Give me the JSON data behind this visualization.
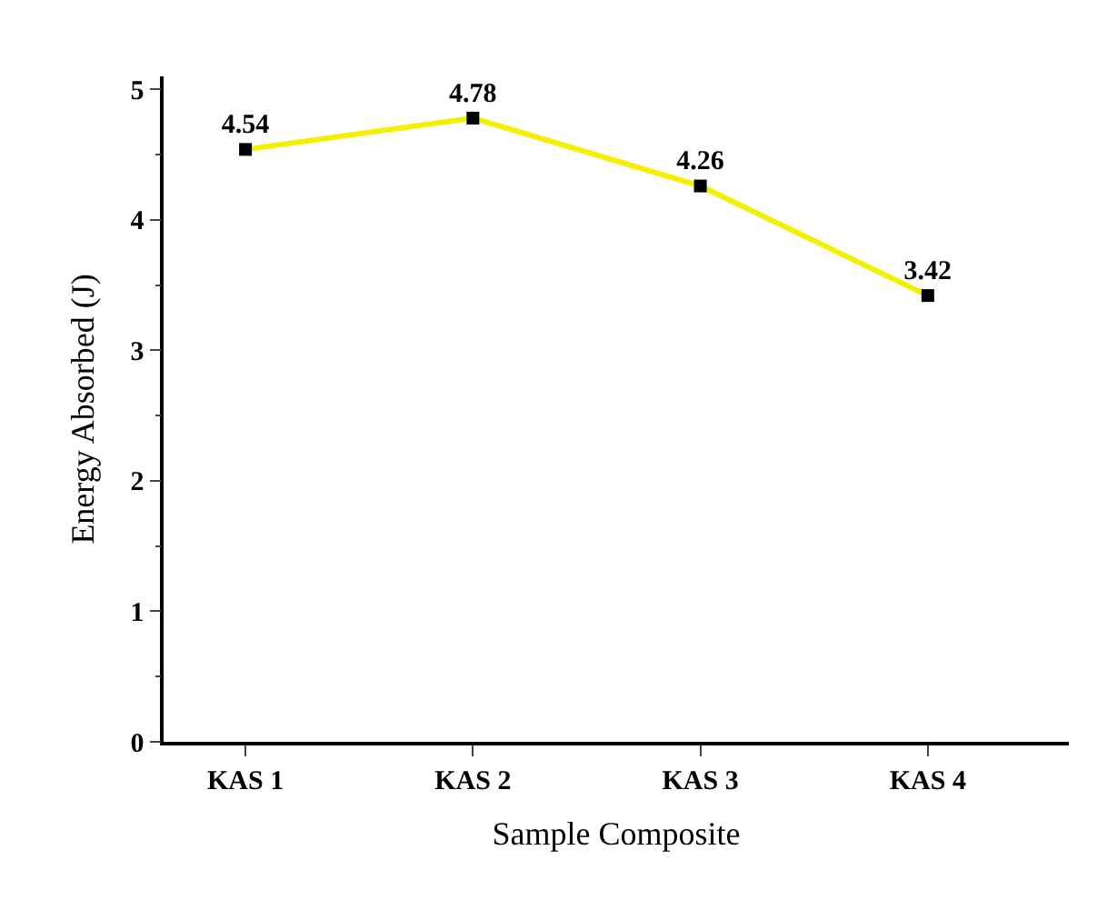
{
  "chart_data": {
    "type": "line",
    "xlabel": "Sample Composite",
    "ylabel": "Energy Absorbed (J)",
    "categories": [
      "KAS 1",
      "KAS 2",
      "KAS 3",
      "KAS 4"
    ],
    "series": [
      {
        "color": "#f5f000",
        "values": [
          4.54,
          4.78,
          4.26,
          3.42
        ]
      }
    ],
    "ylim": [
      0,
      5.1
    ],
    "yticks": [
      0,
      1,
      2,
      3,
      4,
      5
    ],
    "marker": "square",
    "line_style": "solid",
    "data_labels": true,
    "legend": false
  }
}
